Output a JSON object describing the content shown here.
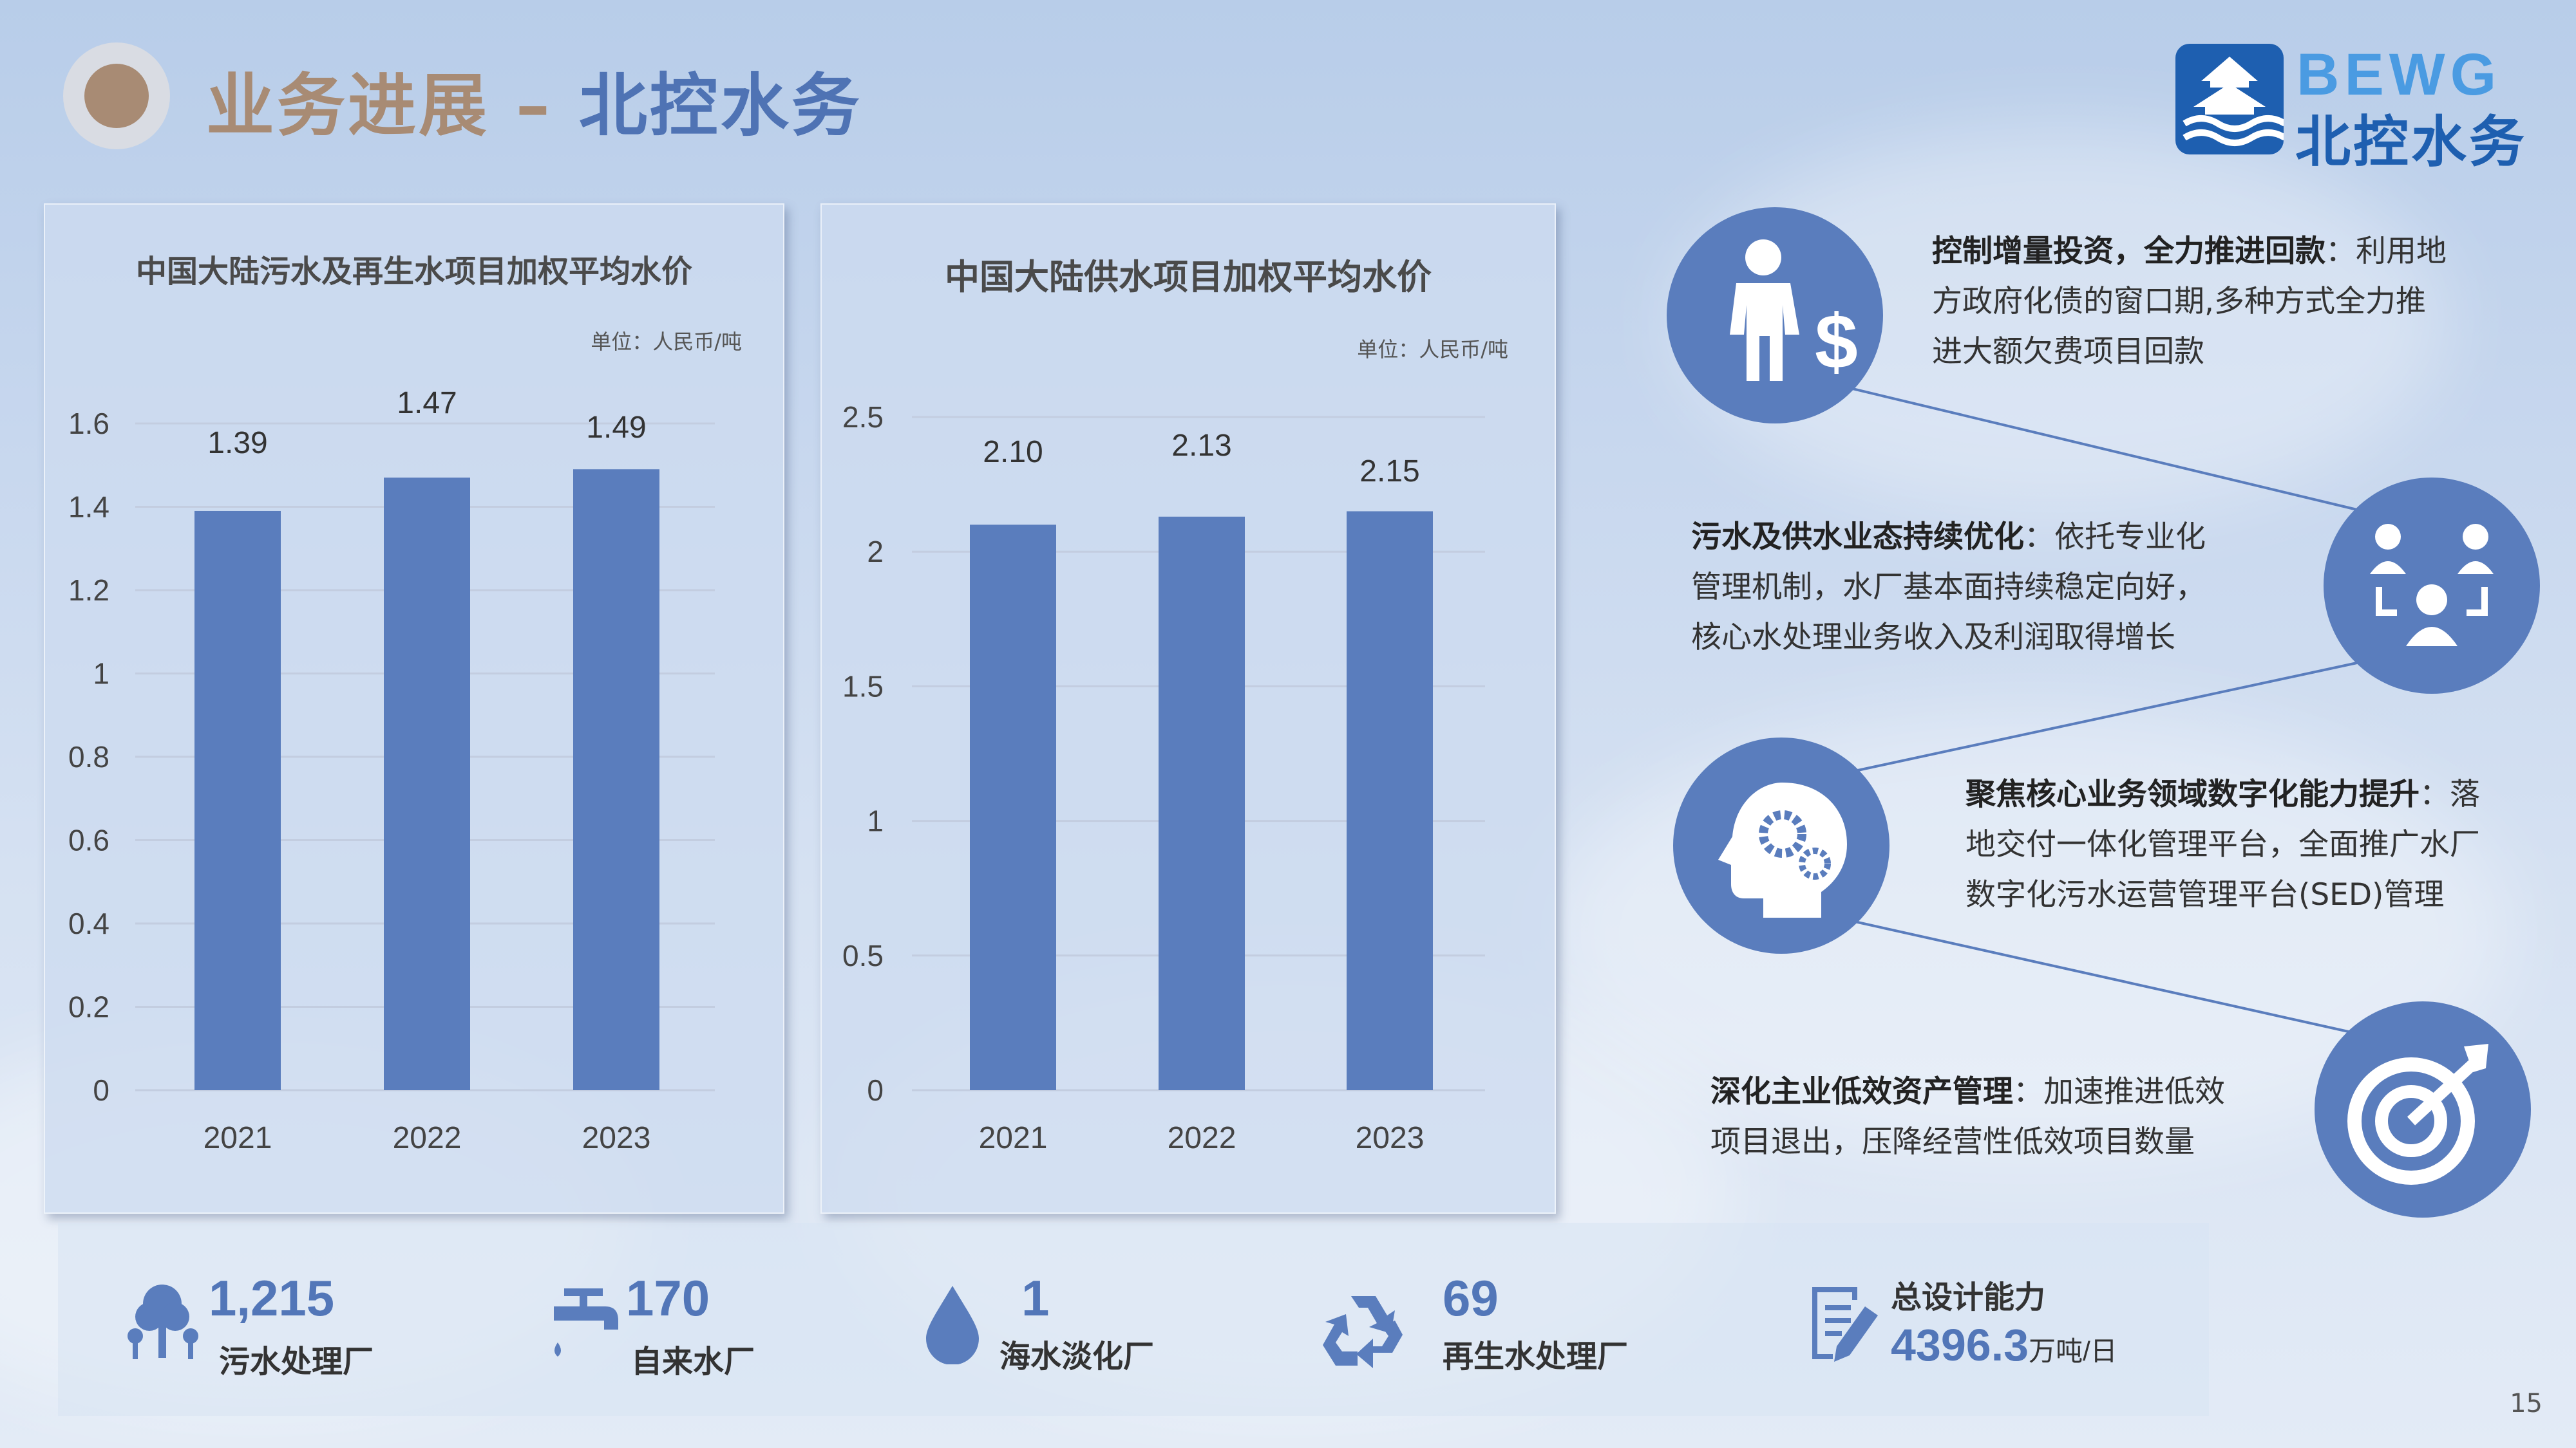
{
  "header": {
    "title_part1": "业务进展",
    "title_sep": " – ",
    "title_part2": "北控水务"
  },
  "logo": {
    "en": "BEWG",
    "cn": "北控水务"
  },
  "charts": {
    "left": {
      "title": "中国大陆污水及再生水项目加权平均水价",
      "unit": "单位：人民币/吨",
      "yticks": [
        "0",
        "0.2",
        "0.4",
        "0.6",
        "0.8",
        "1",
        "1.2",
        "1.4",
        "1.6"
      ]
    },
    "right": {
      "title": "中国大陆供水项目加权平均水价",
      "unit": "单位：人民币/吨",
      "yticks": [
        "0",
        "0.5",
        "1",
        "1.5",
        "2",
        "2.5"
      ]
    }
  },
  "chart_data": [
    {
      "type": "bar",
      "title": "中国大陆污水及再生水项目加权平均水价",
      "categories": [
        "2021",
        "2022",
        "2023"
      ],
      "values": [
        1.39,
        1.47,
        1.49
      ],
      "labels": [
        "1.39",
        "1.47",
        "1.49"
      ],
      "ylim": [
        0,
        1.6
      ],
      "color": "#5a7dbd"
    },
    {
      "type": "bar",
      "title": "中国大陆供水项目加权平均水价",
      "categories": [
        "2021",
        "2022",
        "2023"
      ],
      "values": [
        2.1,
        2.13,
        2.15
      ],
      "labels": [
        "2.10",
        "2.13",
        "2.15"
      ],
      "ylim": [
        0,
        2.5
      ],
      "color": "#5a7dbd"
    }
  ],
  "highlights": [
    {
      "title": "控制增量投资，全力推进回款",
      "sep": "：",
      "body_l1": "利用地",
      "body_l2": "方政府化债的窗口期,多种方式全力推",
      "body_l3": "进大额欠费项目回款",
      "icon": "businessman-dollar-icon"
    },
    {
      "title": "污水及供水业态持续优化",
      "sep": "：",
      "body_l1": "依托专业化",
      "body_l2": "管理机制，水厂基本面持续稳定向好，",
      "body_l3": "核心水处理业务收入及利润取得增长",
      "icon": "team-icon"
    },
    {
      "title": "聚焦核心业务领域数字化能力提升",
      "sep": "：",
      "body_l1": "落",
      "body_l2": "地交付一体化管理平台，全面推广水厂",
      "body_l3": "数字化污水运营管理平台(SED)管理",
      "icon": "head-gears-icon"
    },
    {
      "title": "深化主业低效资产管理",
      "sep": "：",
      "body_l1": "加速推进低效",
      "body_l2": "项目退出，压降经营性低效项目数量",
      "icon": "target-arrow-icon"
    }
  ],
  "stats": [
    {
      "value": "1,215",
      "label": "污水处理厂",
      "icon": "trees-icon"
    },
    {
      "value": "170",
      "label": "自来水厂",
      "icon": "faucet-icon"
    },
    {
      "value": "1",
      "label": "海水淡化厂",
      "icon": "water-drop-icon"
    },
    {
      "value": "69",
      "label": "再生水处理厂",
      "icon": "recycle-icon"
    },
    {
      "label": "总设计能力",
      "value": "4396.3",
      "unit": "万吨/日",
      "icon": "document-pen-icon"
    }
  ],
  "page_number": "15",
  "colors": {
    "accent": "#5a7dbd",
    "brown": "#a88b74",
    "brand": "#1e5fb0"
  }
}
